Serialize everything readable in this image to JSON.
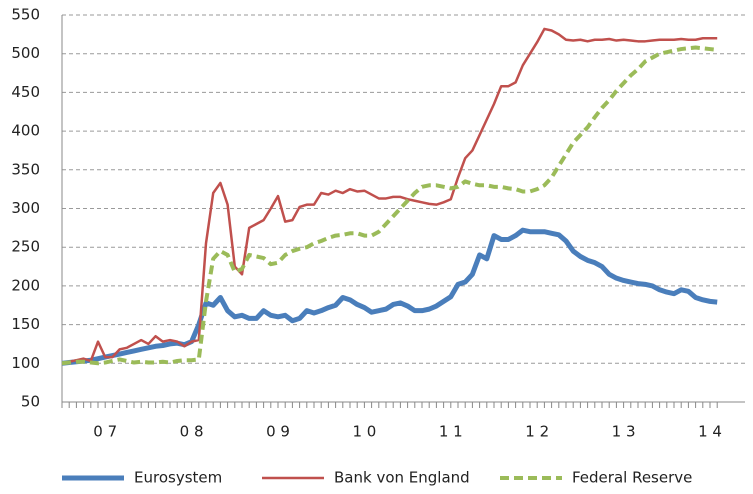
{
  "chart_data": {
    "type": "line",
    "categories": [
      null,
      null,
      null,
      null,
      null,
      null,
      "0 7",
      null,
      null,
      null,
      null,
      null,
      null,
      null,
      null,
      null,
      null,
      null,
      "0 8",
      null,
      null,
      null,
      null,
      null,
      null,
      null,
      null,
      null,
      null,
      null,
      "0 9",
      null,
      null,
      null,
      null,
      null,
      null,
      null,
      null,
      null,
      null,
      null,
      "1 0",
      null,
      null,
      null,
      null,
      null,
      null,
      null,
      null,
      null,
      null,
      null,
      "1 1",
      null,
      null,
      null,
      null,
      null,
      null,
      null,
      null,
      null,
      null,
      null,
      "1 2",
      null,
      null,
      null,
      null,
      null,
      null,
      null,
      null,
      null,
      null,
      null,
      "1 3",
      null,
      null,
      null,
      null,
      null,
      null,
      null,
      null,
      null,
      null,
      null,
      "1 4",
      null
    ],
    "series": [
      {
        "name": "Eurosystem",
        "color": "#4a7ebb",
        "dashed": false,
        "width": 5,
        "values": [
          100,
          101,
          102,
          103,
          104,
          106,
          108,
          110,
          112,
          114,
          116,
          118,
          120,
          122,
          123,
          125,
          126,
          124,
          128,
          150,
          178,
          175,
          185,
          168,
          160,
          162,
          158,
          158,
          168,
          162,
          160,
          162,
          155,
          158,
          168,
          165,
          168,
          172,
          175,
          185,
          182,
          176,
          172,
          166,
          168,
          170,
          176,
          178,
          174,
          168,
          168,
          170,
          174,
          180,
          186,
          202,
          205,
          215,
          240,
          235,
          265,
          260,
          260,
          265,
          272,
          270,
          270,
          270,
          268,
          266,
          258,
          245,
          238,
          233,
          230,
          225,
          215,
          210,
          207,
          205,
          203,
          202,
          200,
          195,
          192,
          190,
          195,
          193,
          185,
          182,
          180,
          179
        ]
      },
      {
        "name": "Bank von England",
        "color": "#c0504d",
        "dashed": false,
        "width": 2.5,
        "values": [
          100,
          102,
          104,
          106,
          103,
          128,
          108,
          108,
          118,
          120,
          125,
          130,
          125,
          135,
          128,
          130,
          128,
          122,
          128,
          130,
          255,
          320,
          333,
          305,
          225,
          215,
          275,
          280,
          285,
          300,
          316,
          283,
          285,
          302,
          305,
          305,
          320,
          318,
          323,
          320,
          325,
          322,
          323,
          318,
          313,
          313,
          315,
          315,
          312,
          310,
          308,
          306,
          305,
          308,
          312,
          340,
          365,
          375,
          395,
          415,
          435,
          458,
          458,
          463,
          485,
          500,
          515,
          532,
          530,
          525,
          518,
          517,
          518,
          516,
          518,
          518,
          519,
          517,
          518,
          517,
          516,
          516,
          517,
          518,
          518,
          518,
          519,
          518,
          518,
          520,
          520,
          520
        ]
      },
      {
        "name": "Federal Reserve",
        "color": "#9bbb59",
        "dashed": true,
        "width": 4,
        "values": [
          100,
          101,
          102,
          102,
          101,
          100,
          101,
          103,
          105,
          103,
          101,
          102,
          101,
          101,
          102,
          101,
          103,
          104,
          104,
          105,
          180,
          235,
          245,
          240,
          218,
          222,
          240,
          238,
          236,
          228,
          230,
          240,
          245,
          248,
          250,
          255,
          258,
          262,
          265,
          266,
          268,
          268,
          265,
          265,
          270,
          280,
          290,
          300,
          310,
          320,
          328,
          330,
          330,
          328,
          326,
          328,
          335,
          332,
          330,
          330,
          328,
          328,
          326,
          325,
          322,
          322,
          325,
          330,
          340,
          355,
          370,
          385,
          395,
          405,
          418,
          430,
          440,
          452,
          462,
          472,
          480,
          490,
          495,
          500,
          502,
          504,
          506,
          507,
          508,
          507,
          506,
          505
        ]
      }
    ],
    "ylim": [
      50,
      550
    ],
    "yticks": [
      50,
      100,
      150,
      200,
      250,
      300,
      350,
      400,
      450,
      500,
      550
    ],
    "grid": true
  }
}
